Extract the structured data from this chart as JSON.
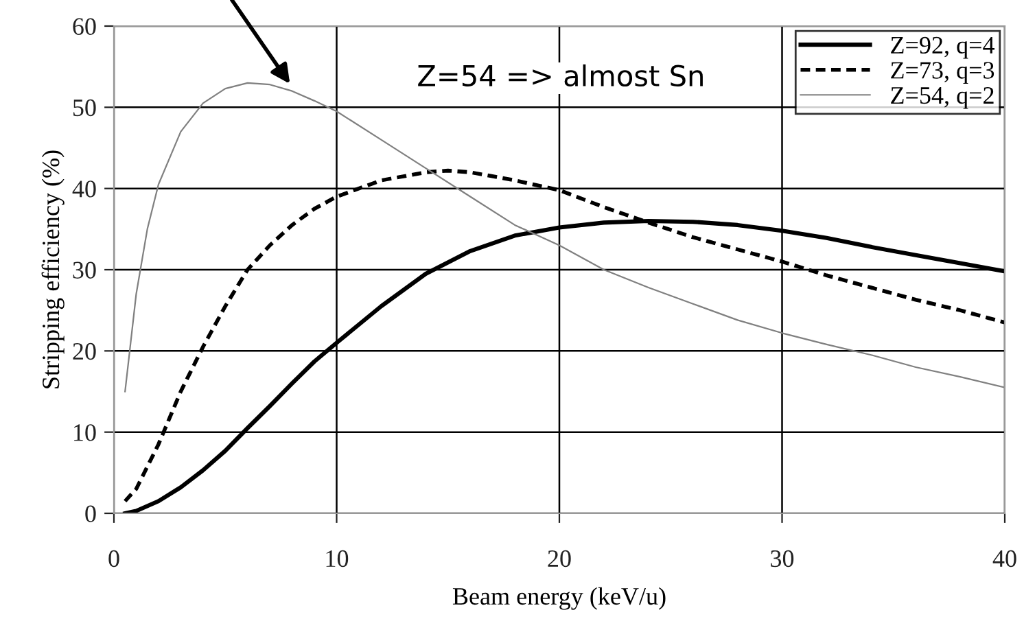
{
  "chart_data": {
    "type": "line",
    "xlabel": "Beam energy (keV/u)",
    "ylabel": "Stripping efficiency (%)",
    "xlim": [
      0,
      40
    ],
    "xticks": [
      0,
      10,
      20,
      30,
      40
    ],
    "ylim": [
      0,
      60
    ],
    "yticks": [
      0,
      10,
      20,
      30,
      40,
      50,
      60
    ],
    "grid": true,
    "legend": "top right",
    "marker": "none",
    "annotations": [
      "Z=54 => almost Sn"
    ],
    "series": [
      {
        "name": "Z=92, q=4",
        "color": "#000000",
        "line_style": "solid",
        "x": [
          0.5,
          1,
          2,
          3,
          4,
          5,
          6,
          7,
          8,
          9,
          10,
          12,
          14,
          16,
          18,
          20,
          22,
          24,
          26,
          28,
          30,
          32,
          34,
          36,
          38,
          40
        ],
        "values": [
          0,
          0.3,
          1.5,
          3.2,
          5.3,
          7.7,
          10.5,
          13.2,
          16,
          18.7,
          21,
          25.5,
          29.5,
          32.3,
          34.2,
          35.2,
          35.8,
          36,
          35.9,
          35.5,
          34.8,
          33.9,
          32.8,
          31.8,
          30.8,
          29.8
        ]
      },
      {
        "name": "Z=73, q=3",
        "color": "#000000",
        "line_style": "dashed",
        "x": [
          0.5,
          1,
          2,
          3,
          4,
          5,
          6,
          7,
          8,
          9,
          10,
          12,
          14,
          15,
          16,
          18,
          20,
          22,
          24,
          26,
          28,
          30,
          32,
          34,
          36,
          38,
          40
        ],
        "values": [
          1.5,
          3,
          8.5,
          15,
          20.5,
          25.5,
          30,
          33,
          35.5,
          37.5,
          39,
          41,
          42,
          42.2,
          42,
          41,
          39.8,
          37.7,
          35.8,
          34,
          32.5,
          31,
          29.3,
          27.8,
          26.3,
          25,
          23.5
        ]
      },
      {
        "name": "Z=54, q=2",
        "color": "#808080",
        "line_style": "solid",
        "x": [
          0.5,
          1,
          1.5,
          2,
          3,
          4,
          5,
          6,
          7,
          8,
          9,
          10,
          12,
          14,
          16,
          18,
          20,
          22,
          24,
          26,
          28,
          30,
          32,
          34,
          36,
          38,
          40
        ],
        "values": [
          15,
          27,
          35,
          40.5,
          47,
          50.5,
          52.3,
          53,
          52.8,
          52,
          50.8,
          49.5,
          46,
          42.5,
          39,
          35.5,
          33,
          30,
          27.8,
          25.8,
          23.8,
          22.2,
          20.8,
          19.5,
          18,
          16.8,
          15.5
        ]
      }
    ]
  }
}
